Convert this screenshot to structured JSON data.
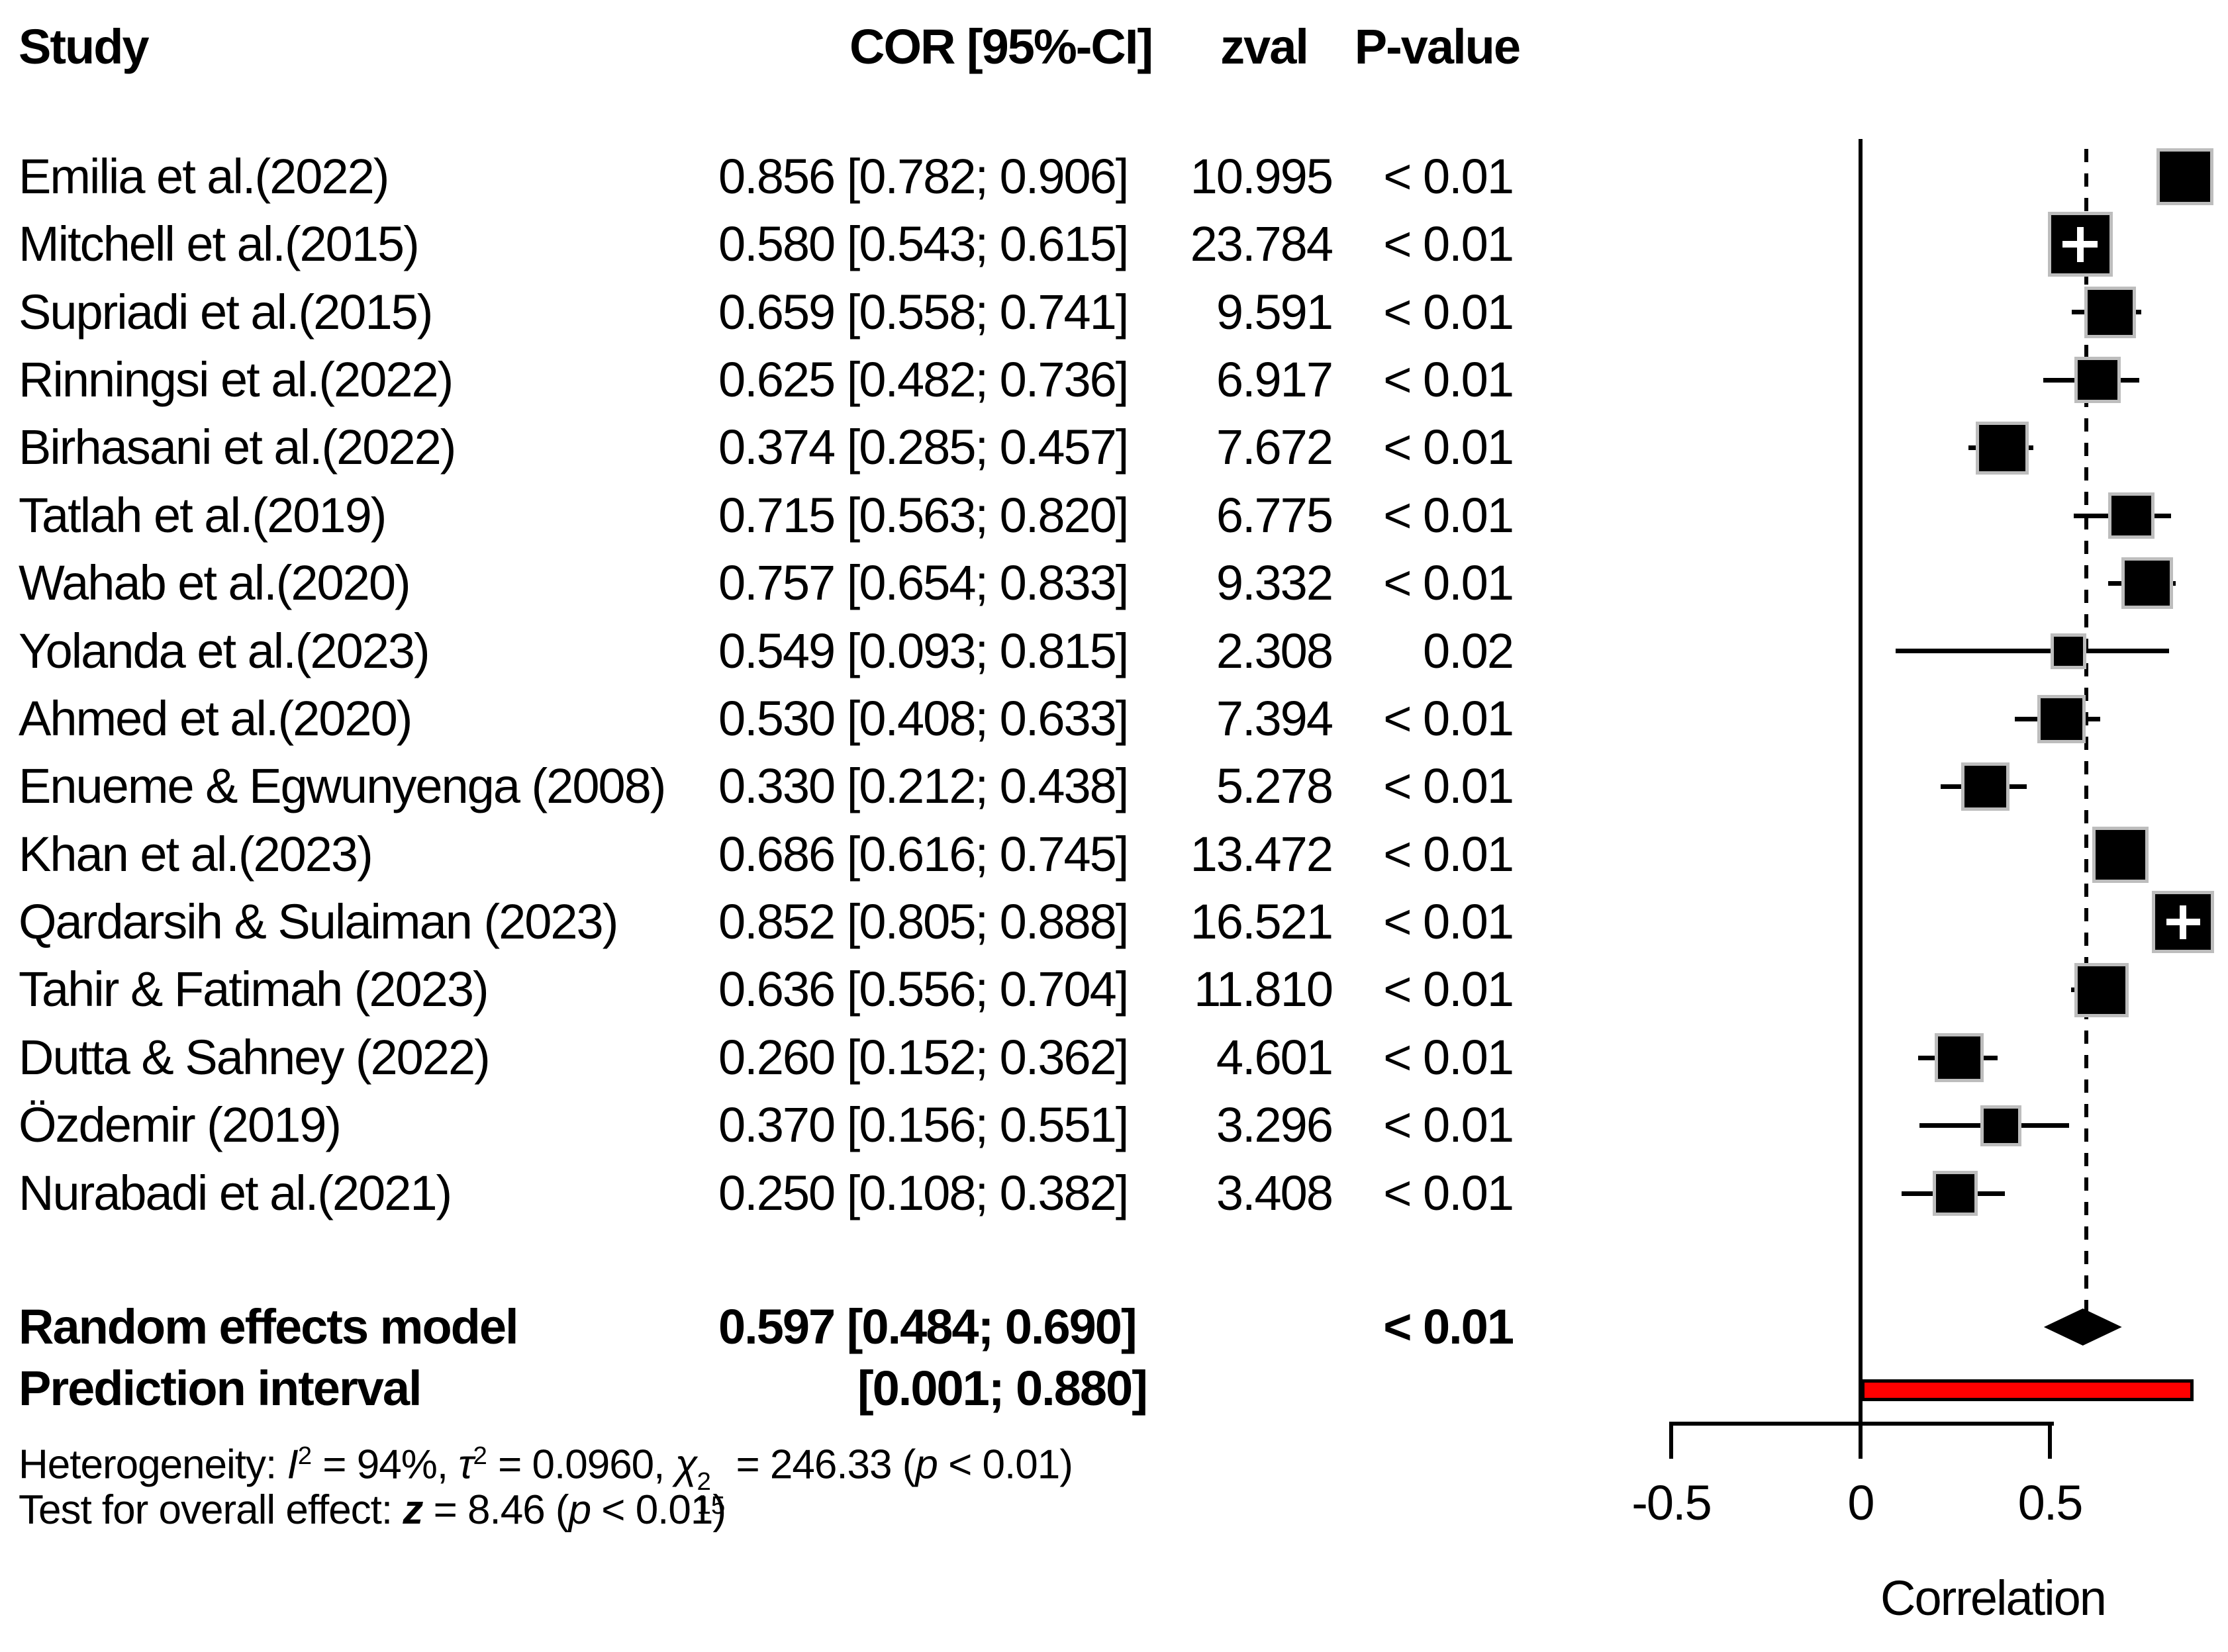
{
  "header": {
    "study": "Study",
    "cor_ci": "COR [95%-CI]",
    "zval": "zval",
    "pvalue": "P-value"
  },
  "chart_data": {
    "type": "forest",
    "xlabel": "Correlation",
    "axis": {
      "ticks": [
        -0.5,
        0,
        0.5
      ],
      "tick_labels": [
        "-0.5",
        "0",
        "0.5"
      ],
      "zero_line": 0,
      "dashed_line_at": 0.597,
      "xlim": [
        -0.62,
        0.97
      ]
    },
    "studies": [
      {
        "name": "Emilia et al.(2022)",
        "cor": 0.856,
        "lo": 0.782,
        "hi": 0.906,
        "est_text": "0.856 [0.782; 0.906]",
        "zval": "10.995",
        "p": "< 0.01",
        "sq": 76,
        "cross": false
      },
      {
        "name": "Mitchell et al.(2015)",
        "cor": 0.58,
        "lo": 0.543,
        "hi": 0.615,
        "est_text": "0.580 [0.543; 0.615]",
        "zval": "23.784",
        "p": "< 0.01",
        "sq": 88,
        "cross": true
      },
      {
        "name": "Supriadi et al.(2015)",
        "cor": 0.659,
        "lo": 0.558,
        "hi": 0.741,
        "est_text": "0.659 [0.558; 0.741]",
        "zval": "9.591",
        "p": "< 0.01",
        "sq": 68,
        "cross": false
      },
      {
        "name": "Rinningsi et al.(2022)",
        "cor": 0.625,
        "lo": 0.482,
        "hi": 0.736,
        "est_text": "0.625 [0.482; 0.736]",
        "zval": "6.917",
        "p": "< 0.01",
        "sq": 60,
        "cross": false
      },
      {
        "name": "Birhasani et al.(2022)",
        "cor": 0.374,
        "lo": 0.285,
        "hi": 0.457,
        "est_text": "0.374 [0.285; 0.457]",
        "zval": "7.672",
        "p": "< 0.01",
        "sq": 70,
        "cross": false
      },
      {
        "name": "Tatlah et al.(2019)",
        "cor": 0.715,
        "lo": 0.563,
        "hi": 0.82,
        "est_text": "0.715 [0.563; 0.820]",
        "zval": "6.775",
        "p": "< 0.01",
        "sq": 60,
        "cross": false
      },
      {
        "name": "Wahab et al.(2020)",
        "cor": 0.757,
        "lo": 0.654,
        "hi": 0.833,
        "est_text": "0.757 [0.654; 0.833]",
        "zval": "9.332",
        "p": "< 0.01",
        "sq": 68,
        "cross": false
      },
      {
        "name": "Yolanda et al.(2023)",
        "cor": 0.549,
        "lo": 0.093,
        "hi": 0.815,
        "est_text": "0.549 [0.093; 0.815]",
        "zval": "2.308",
        "p": "0.02",
        "sq": 44,
        "cross": false
      },
      {
        "name": "Ahmed et al.(2020)",
        "cor": 0.53,
        "lo": 0.408,
        "hi": 0.633,
        "est_text": "0.530 [0.408; 0.633]",
        "zval": "7.394",
        "p": "< 0.01",
        "sq": 63,
        "cross": false
      },
      {
        "name": "Enueme & Egwunyenga (2008)",
        "cor": 0.33,
        "lo": 0.212,
        "hi": 0.438,
        "est_text": "0.330 [0.212; 0.438]",
        "zval": "5.278",
        "p": "< 0.01",
        "sq": 63,
        "cross": false
      },
      {
        "name": "Khan et al.(2023)",
        "cor": 0.686,
        "lo": 0.616,
        "hi": 0.745,
        "est_text": "0.686 [0.616; 0.745]",
        "zval": "13.472",
        "p": "< 0.01",
        "sq": 75,
        "cross": false
      },
      {
        "name": "Qardarsih & Sulaiman (2023)",
        "cor": 0.852,
        "lo": 0.805,
        "hi": 0.888,
        "est_text": "0.852 [0.805; 0.888]",
        "zval": "16.521",
        "p": "< 0.01",
        "sq": 84,
        "cross": true
      },
      {
        "name": "Tahir & Fatimah (2023)",
        "cor": 0.636,
        "lo": 0.556,
        "hi": 0.704,
        "est_text": "0.636 [0.556; 0.704]",
        "zval": "11.810",
        "p": "< 0.01",
        "sq": 72,
        "cross": false
      },
      {
        "name": "Dutta & Sahney (2022)",
        "cor": 0.26,
        "lo": 0.152,
        "hi": 0.362,
        "est_text": "0.260 [0.152; 0.362]",
        "zval": "4.601",
        "p": "< 0.01",
        "sq": 64,
        "cross": false
      },
      {
        "name": "Özdemir (2019)",
        "cor": 0.37,
        "lo": 0.156,
        "hi": 0.551,
        "est_text": "0.370 [0.156; 0.551]",
        "zval": "3.296",
        "p": "< 0.01",
        "sq": 52,
        "cross": false
      },
      {
        "name": "Nurabadi et al.(2021)",
        "cor": 0.25,
        "lo": 0.108,
        "hi": 0.382,
        "est_text": "0.250 [0.108; 0.382]",
        "zval": "3.408",
        "p": "< 0.01",
        "sq": 58,
        "cross": false
      }
    ],
    "summary": {
      "label": "Random effects model",
      "cor": 0.597,
      "lo": 0.484,
      "hi": 0.69,
      "est_text": "0.597 [0.484; 0.690]",
      "p": "< 0.01"
    },
    "prediction": {
      "label": "Prediction interval",
      "lo": 0.001,
      "hi": 0.88,
      "est_text": "[0.001; 0.880]"
    },
    "heterogeneity": {
      "I2": "94%",
      "tau2": "0.0960",
      "chi2": "246.33",
      "df": "15",
      "p": "< 0.01"
    },
    "overall_test": {
      "z": "8.46",
      "p": "< 0.01"
    }
  },
  "stats": {
    "het": {
      "pre": "Heterogeneity: ",
      "i": "I",
      "isup": "2",
      "s1": " = 94%, ",
      "tau": "τ",
      "tausup": "2",
      "s2": " = 0.0960, ",
      "chi": "χ",
      "chisup": "2",
      "chisub": "15",
      "s3": " = 246.33 (",
      "p": "p",
      "s4": " < 0.01)"
    },
    "test": {
      "pre": "Test for overall effect: ",
      "z": "z",
      "s1": " = 8.46 (",
      "p": "p",
      "s2": " < 0.01)"
    }
  },
  "colors": {
    "square": "#000000",
    "square_outline": "#bdbdbd",
    "prediction_bar": "#ff0000",
    "diamond": "#000000",
    "text": "#000000"
  }
}
